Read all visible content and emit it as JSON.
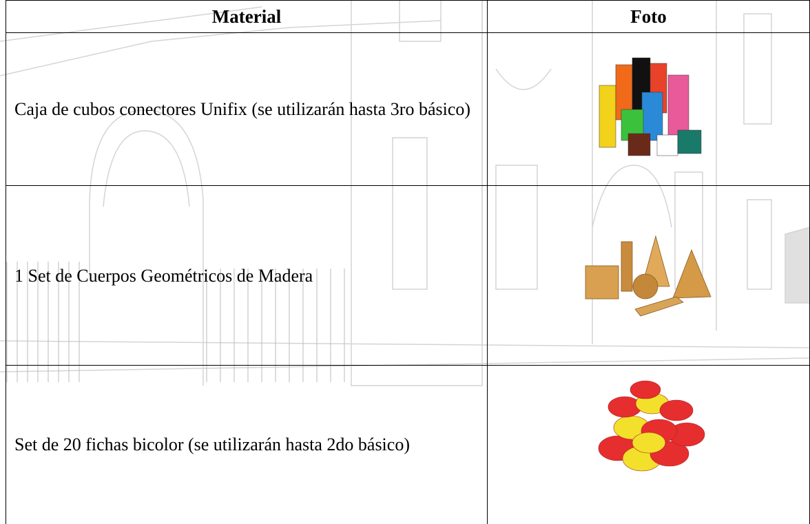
{
  "table": {
    "header": [
      "Material",
      "Foto"
    ],
    "rows": [
      [
        "Caja de cubos conectores Unifix (se utilizarán hasta 3ro básico)"
      ],
      [
        "1 Set de Cuerpos Geométricos de Madera"
      ],
      [
        "Set de 20 fichas bicolor (se utilizarán hasta 2do básico)"
      ]
    ]
  }
}
